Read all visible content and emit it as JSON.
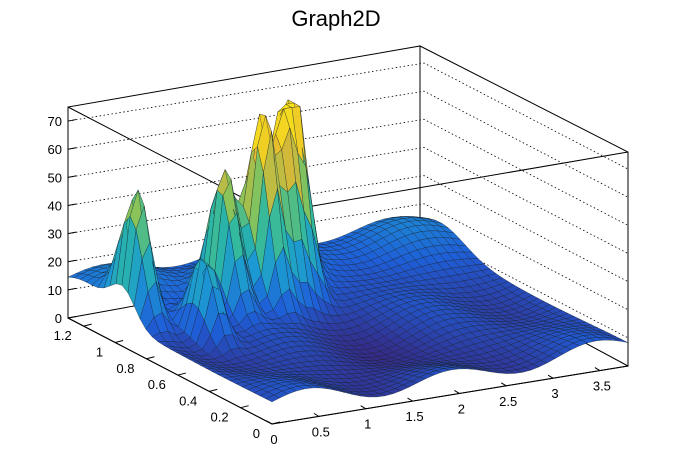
{
  "chart_data": {
    "type": "surface",
    "title": "Graph2D",
    "xlabel": "",
    "ylabel": "",
    "zlabel": "",
    "xlim": [
      0,
      3.8
    ],
    "ylim": [
      0,
      1.3
    ],
    "zlim": [
      0,
      75
    ],
    "x_ticks": [
      "0",
      "0.5",
      "1",
      "1.5",
      "2",
      "2.5",
      "3",
      "3.5"
    ],
    "y_ticks": [
      "0",
      "0.2",
      "0.4",
      "0.6",
      "0.8",
      "1",
      "1.2"
    ],
    "z_ticks": [
      "0",
      "10",
      "20",
      "30",
      "40",
      "50",
      "60",
      "70"
    ],
    "peaks": [
      {
        "x": 0.15,
        "y": 0.95,
        "z": 45
      },
      {
        "x": 0.55,
        "y": 0.75,
        "z": 30
      },
      {
        "x": 1.0,
        "y": 0.9,
        "z": 50
      },
      {
        "x": 1.2,
        "y": 1.0,
        "z": 38
      },
      {
        "x": 1.45,
        "y": 0.92,
        "z": 70
      },
      {
        "x": 1.7,
        "y": 0.95,
        "z": 60
      },
      {
        "x": 1.9,
        "y": 1.0,
        "z": 68
      },
      {
        "x": 2.1,
        "y": 1.15,
        "z": 40
      }
    ],
    "base_level": 8,
    "colormap": [
      "#352a87",
      "#1e5fd8",
      "#1c99d2",
      "#2db8a2",
      "#88c35a",
      "#e6b732",
      "#f9e31a"
    ],
    "grid": true
  }
}
